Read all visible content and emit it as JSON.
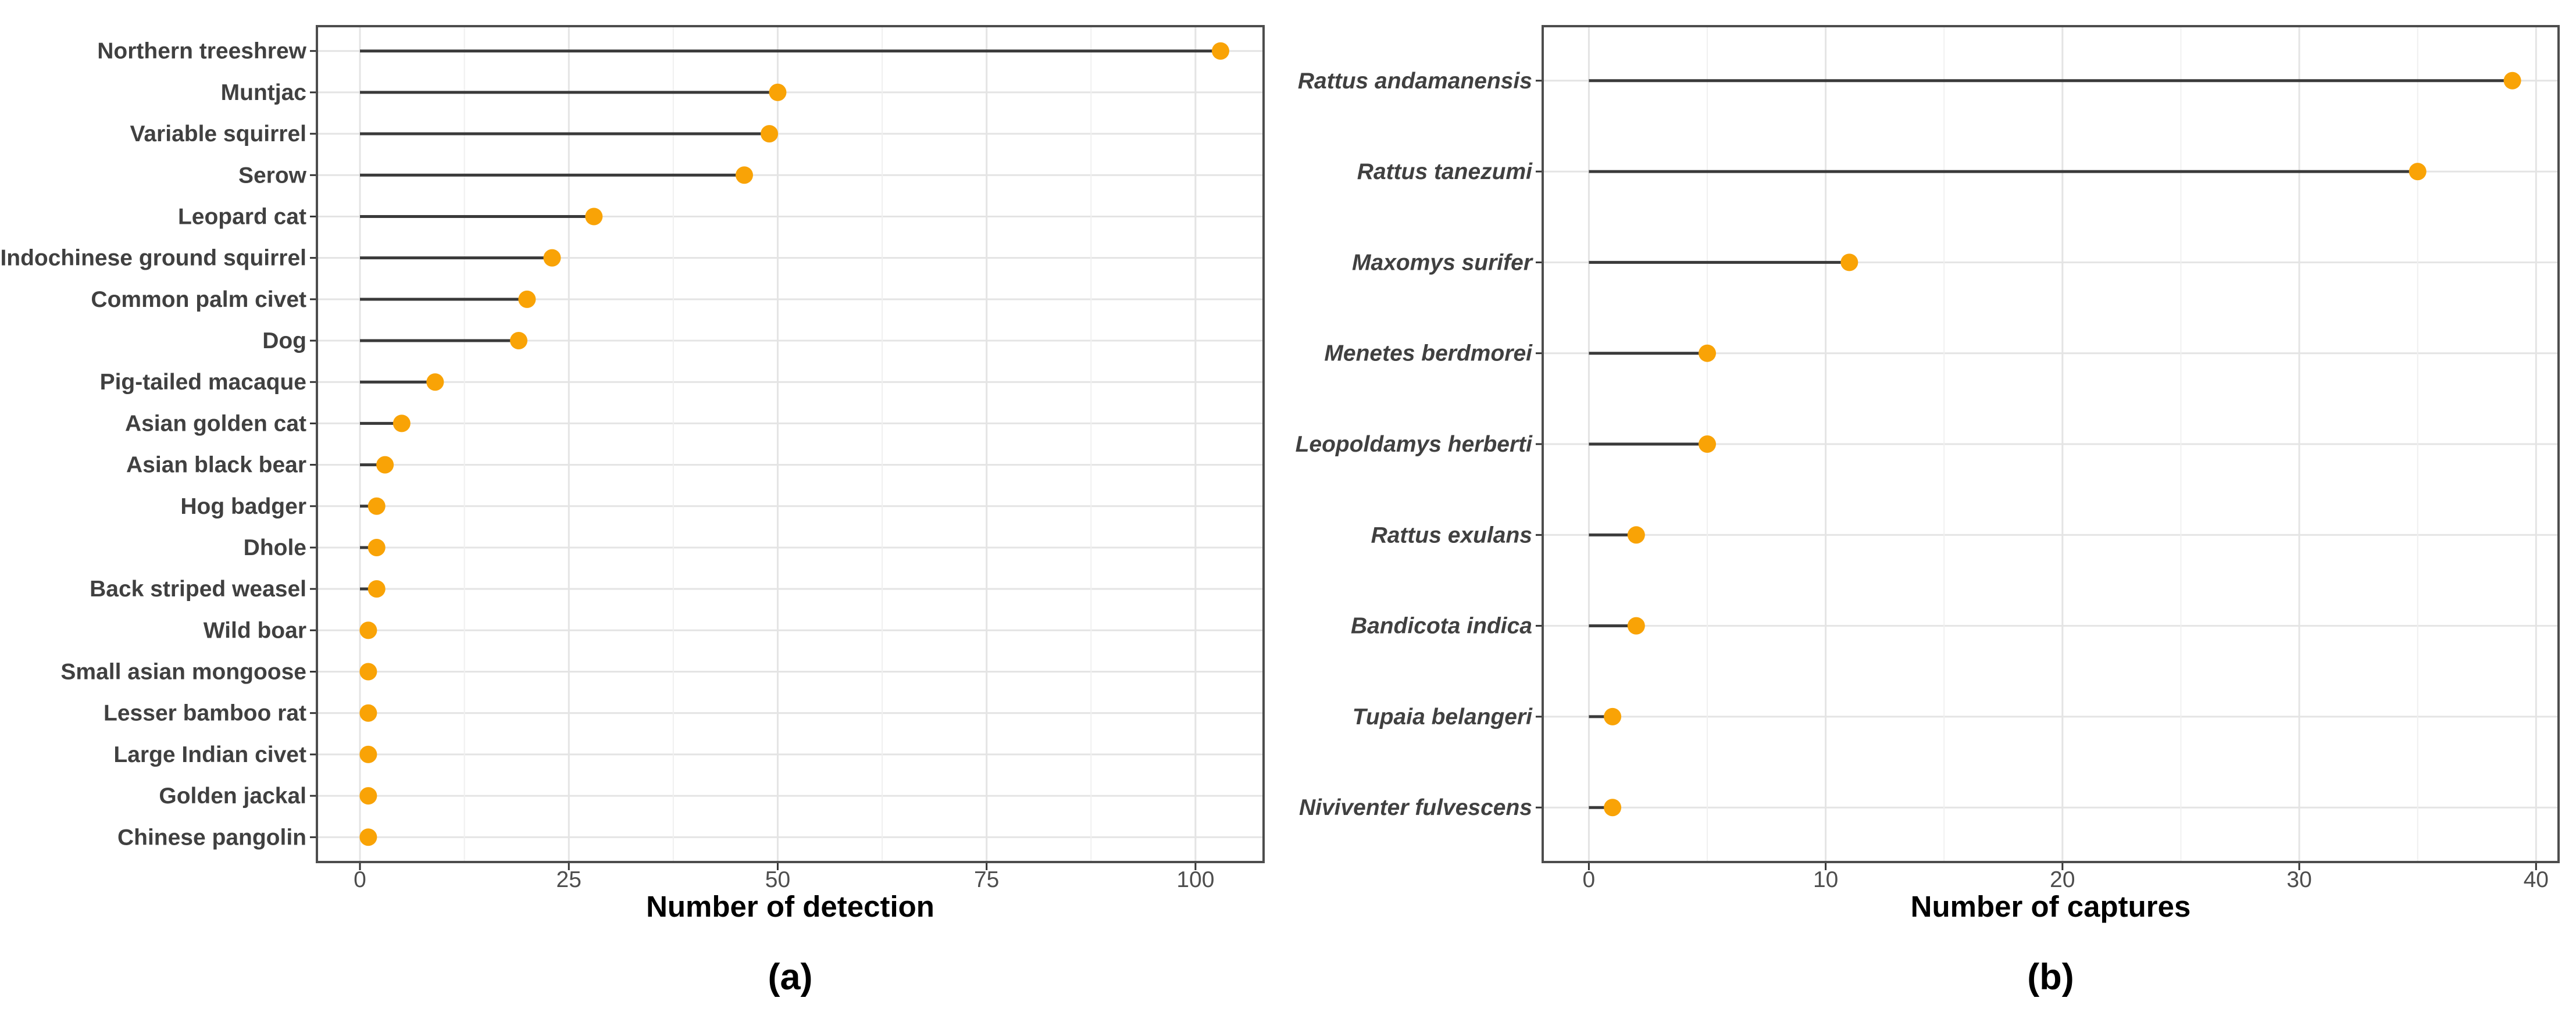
{
  "figure": {
    "background_color": "#ffffff",
    "accent_color": "#F9A306",
    "stem_color": "#3a3a3a",
    "text_color": "#404040",
    "grid_major_color": "#e4e4e4",
    "grid_minor_color": "#f0f0f0",
    "border_color": "#4d4d4d"
  },
  "chart_data": [
    {
      "type": "bar",
      "variant": "lollipop",
      "orientation": "horizontal",
      "caption": "(a)",
      "xlabel": "Number of detection",
      "ylabel": "",
      "categories": [
        "Northern treeshrew",
        "Muntjac",
        "Variable squirrel",
        "Serow",
        "Leopard cat",
        "Indochinese ground squirrel",
        "Common palm civet",
        "Dog",
        "Pig-tailed macaque",
        "Asian golden cat",
        "Asian black bear",
        "Hog badger",
        "Dhole",
        "Back striped weasel",
        "Wild boar",
        "Small asian mongoose",
        "Lesser bamboo rat",
        "Large Indian civet",
        "Golden jackal",
        "Chinese pangolin"
      ],
      "values": [
        103,
        50,
        49,
        46,
        28,
        23,
        20,
        19,
        9,
        5,
        3,
        2,
        2,
        2,
        1,
        1,
        1,
        1,
        1,
        1
      ],
      "x_ticks": [
        0,
        25,
        50,
        75,
        100
      ],
      "x_minor_ticks": [
        12.5,
        37.5,
        62.5,
        87.5
      ],
      "xlim": [
        -5.15,
        108.15
      ],
      "grid": true,
      "legend": "none",
      "italic_labels": false,
      "dot_color": "#F9A306"
    },
    {
      "type": "bar",
      "variant": "lollipop",
      "orientation": "horizontal",
      "caption": "(b)",
      "xlabel": "Number of captures",
      "ylabel": "",
      "categories": [
        "Rattus andamanensis",
        "Rattus tanezumi",
        "Maxomys surifer",
        "Menetes berdmorei",
        "Leopoldamys herberti",
        "Rattus exulans",
        "Bandicota indica",
        "Tupaia belangeri",
        "Niviventer fulvescens"
      ],
      "values": [
        39,
        35,
        11,
        5,
        5,
        2,
        2,
        1,
        1
      ],
      "x_ticks": [
        0,
        10,
        20,
        30,
        40
      ],
      "x_minor_ticks": [
        5,
        15,
        25,
        35
      ],
      "xlim": [
        -1.95,
        40.95
      ],
      "grid": true,
      "legend": "none",
      "italic_labels": true,
      "dot_color": "#F9A306"
    }
  ]
}
